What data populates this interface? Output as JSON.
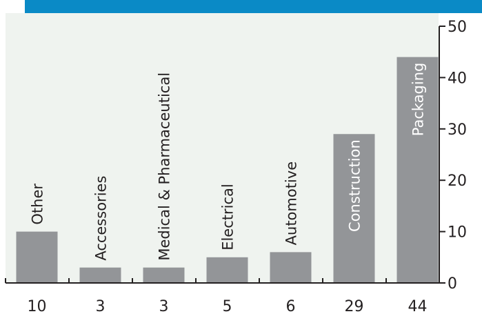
{
  "colors": {
    "header_bar": "#0a8ac6",
    "plot_background": "#eff3ef",
    "bar": "#939598",
    "axis": "#231f20",
    "inside_label": "#ffffff"
  },
  "chart_data": {
    "type": "bar",
    "categories": [
      "Other",
      "Accessories",
      "Medical & Pharmaceutical",
      "Electrical",
      "Automotive",
      "Construction",
      "Packaging"
    ],
    "values": [
      10,
      3,
      3,
      5,
      6,
      29,
      44
    ],
    "value_labels": [
      "10",
      "3",
      "3",
      "5",
      "6",
      "29",
      "44"
    ],
    "label_inside_bar": [
      false,
      false,
      false,
      false,
      false,
      true,
      true
    ],
    "ylim": [
      0,
      50
    ],
    "y_ticks": [
      0,
      10,
      20,
      30,
      40,
      50
    ],
    "y_tick_labels": [
      "0",
      "10",
      "20",
      "30",
      "40",
      "50"
    ],
    "y_axis_side": "right",
    "category_label_orientation": "vertical",
    "grid": false,
    "legend": "none"
  }
}
